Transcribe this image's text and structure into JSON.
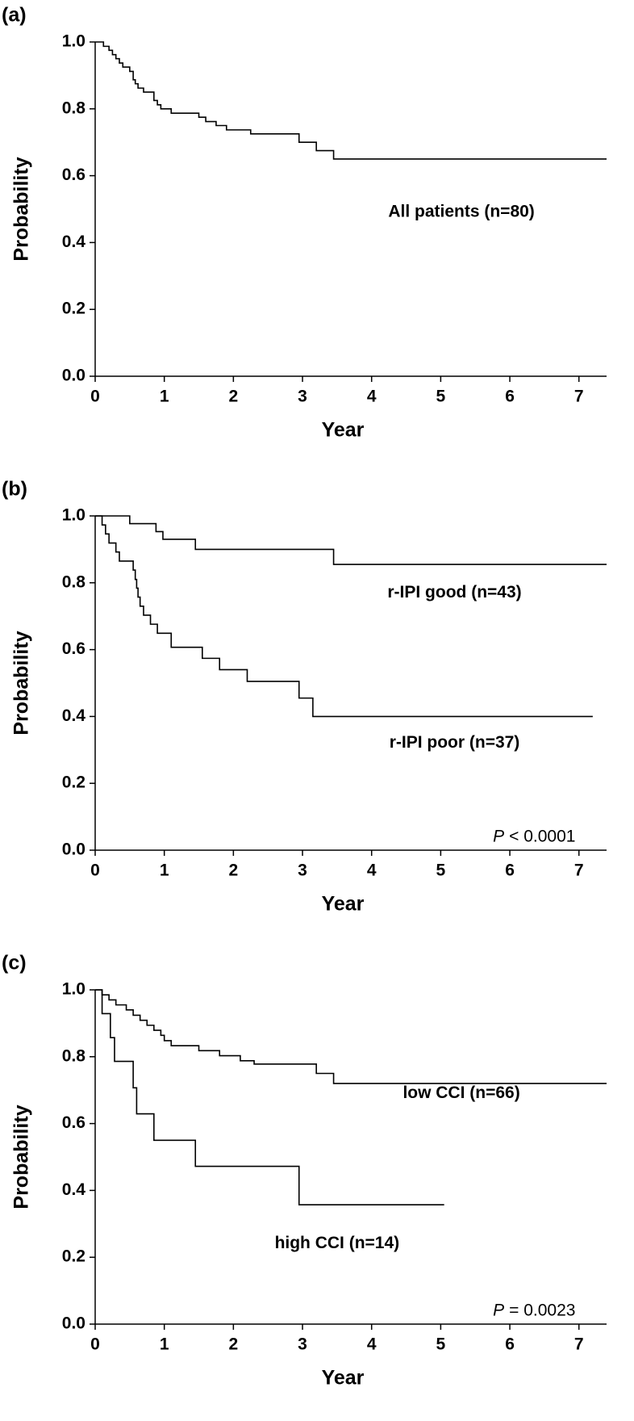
{
  "chart_data": [
    {
      "type": "step",
      "panel": "(a)",
      "xlabel": "Year",
      "ylabel": "Probability",
      "xlim": [
        0,
        7.4
      ],
      "ylim": [
        0,
        1
      ],
      "xticks": [
        0,
        1,
        2,
        3,
        4,
        5,
        6,
        7
      ],
      "yticks": [
        {
          "value": 0,
          "label": "0.0"
        },
        0.2,
        0.4,
        0.6,
        0.8,
        {
          "value": 1,
          "label": "1.0"
        }
      ],
      "annotations": [
        "All patients (n=80)"
      ],
      "series": [
        {
          "name": "All patients",
          "color": "#000000",
          "x": [
            0,
            0.12,
            0.2,
            0.25,
            0.3,
            0.35,
            0.4,
            0.5,
            0.55,
            0.58,
            0.62,
            0.7,
            0.85,
            0.9,
            0.95,
            1.1,
            1.5,
            1.6,
            1.75,
            1.9,
            2.25,
            2.95,
            3.2,
            3.45,
            7.4
          ],
          "values": [
            1.0,
            0.987,
            0.975,
            0.962,
            0.95,
            0.937,
            0.925,
            0.912,
            0.887,
            0.875,
            0.862,
            0.85,
            0.825,
            0.812,
            0.8,
            0.787,
            0.775,
            0.762,
            0.75,
            0.737,
            0.725,
            0.7,
            0.675,
            0.65,
            0.65
          ]
        }
      ]
    },
    {
      "type": "step",
      "panel": "(b)",
      "xlabel": "Year",
      "ylabel": "Probability",
      "xlim": [
        0,
        7.4
      ],
      "ylim": [
        0,
        1
      ],
      "xticks": [
        0,
        1,
        2,
        3,
        4,
        5,
        6,
        7
      ],
      "yticks": [
        {
          "value": 0,
          "label": "0.0"
        },
        0.2,
        0.4,
        0.6,
        0.8,
        {
          "value": 1,
          "label": "1.0"
        }
      ],
      "annotations": [
        "r-IPI good (n=43)",
        "r-IPI poor (n=37)"
      ],
      "p_value": {
        "symbol": "P",
        "text": "< 0.0001"
      },
      "series": [
        {
          "name": "r-IPI good",
          "color": "#000000",
          "x": [
            0,
            0.5,
            0.88,
            0.98,
            1.45,
            3.45,
            7.4
          ],
          "values": [
            1.0,
            0.977,
            0.953,
            0.93,
            0.9,
            0.855,
            0.855
          ]
        },
        {
          "name": "r-IPI poor",
          "color": "#000000",
          "x": [
            0,
            0.1,
            0.15,
            0.2,
            0.3,
            0.35,
            0.55,
            0.58,
            0.6,
            0.62,
            0.65,
            0.7,
            0.8,
            0.9,
            1.1,
            1.55,
            1.8,
            2.2,
            2.95,
            3.15,
            7.2
          ],
          "values": [
            1.0,
            0.973,
            0.946,
            0.919,
            0.892,
            0.865,
            0.838,
            0.81,
            0.784,
            0.757,
            0.73,
            0.703,
            0.676,
            0.649,
            0.607,
            0.574,
            0.54,
            0.505,
            0.455,
            0.4,
            0.4
          ]
        }
      ]
    },
    {
      "type": "step",
      "panel": "(c)",
      "xlabel": "Year",
      "ylabel": "Probability",
      "xlim": [
        0,
        7.4
      ],
      "ylim": [
        0,
        1
      ],
      "xticks": [
        0,
        1,
        2,
        3,
        4,
        5,
        6,
        7
      ],
      "yticks": [
        {
          "value": 0,
          "label": "0.0"
        },
        0.2,
        0.4,
        0.6,
        0.8,
        {
          "value": 1,
          "label": "1.0"
        }
      ],
      "annotations": [
        "low CCI (n=66)",
        "high CCI (n=14)"
      ],
      "p_value": {
        "symbol": "P",
        "text": "= 0.0023"
      },
      "series": [
        {
          "name": "low CCI",
          "color": "#000000",
          "x": [
            0,
            0.1,
            0.2,
            0.3,
            0.45,
            0.55,
            0.65,
            0.75,
            0.85,
            0.95,
            1.0,
            1.1,
            1.5,
            1.8,
            2.1,
            2.3,
            3.2,
            3.45,
            7.4
          ],
          "values": [
            1.0,
            0.985,
            0.97,
            0.955,
            0.94,
            0.924,
            0.909,
            0.894,
            0.879,
            0.864,
            0.848,
            0.833,
            0.818,
            0.803,
            0.788,
            0.778,
            0.75,
            0.72,
            0.72
          ]
        },
        {
          "name": "high CCI",
          "color": "#000000",
          "x": [
            0,
            0.1,
            0.22,
            0.28,
            0.55,
            0.6,
            0.85,
            1.45,
            2.95,
            5.05
          ],
          "values": [
            1.0,
            0.929,
            0.857,
            0.786,
            0.707,
            0.629,
            0.55,
            0.472,
            0.357,
            0.357
          ]
        }
      ]
    }
  ]
}
